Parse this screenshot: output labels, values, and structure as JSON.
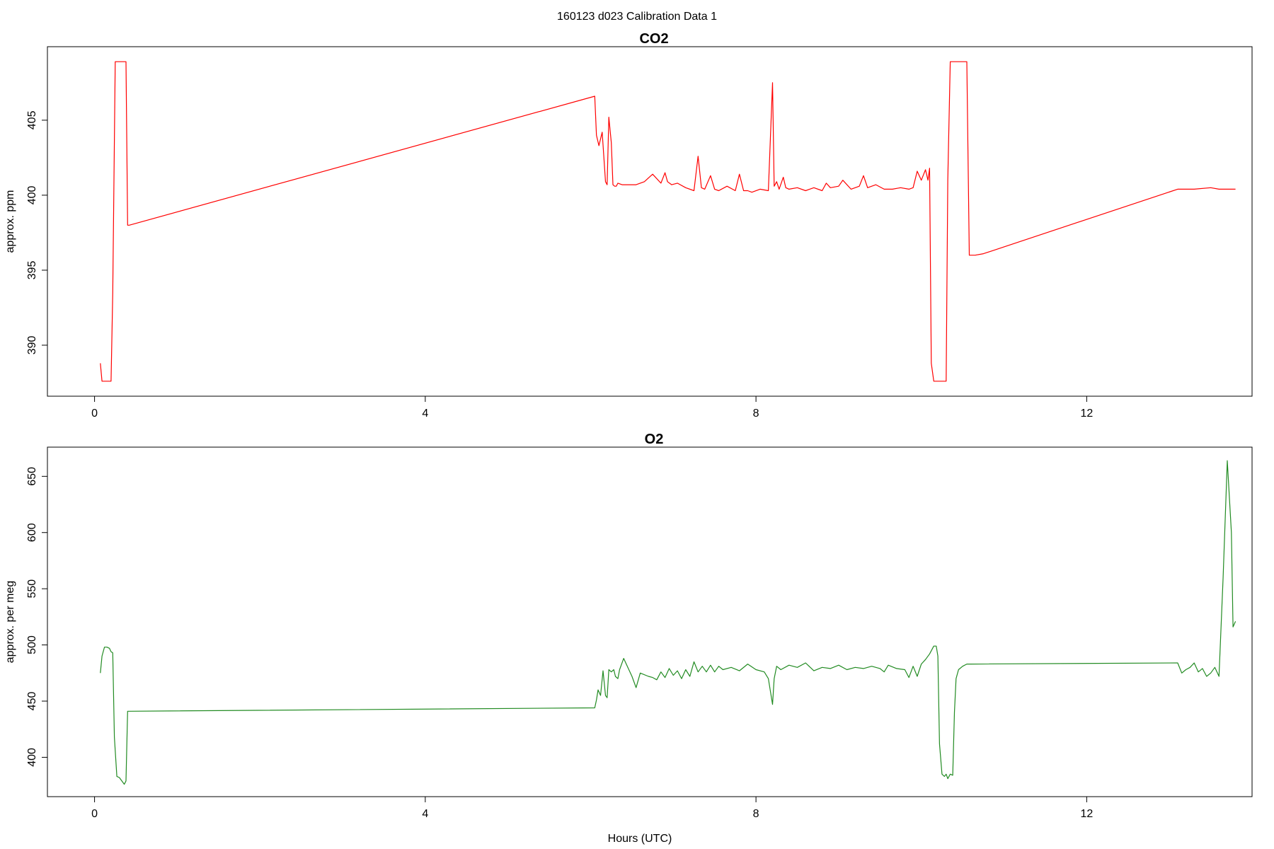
{
  "figure": {
    "title": "160123   d023   Calibration Data 1"
  },
  "chart_data": [
    {
      "type": "line",
      "title": "CO2",
      "xlabel": "",
      "ylabel": "approx. ppm",
      "xlim": [
        -0.57,
        14.0
      ],
      "ylim": [
        386.6,
        409.9
      ],
      "xticks": [
        0,
        4,
        8,
        12
      ],
      "yticks": [
        390,
        395,
        400,
        405
      ],
      "grid": false,
      "color": "#ff0000",
      "series": [
        {
          "x": [
            0.07,
            0.09,
            0.12,
            0.2,
            0.22,
            0.25,
            0.3,
            0.38,
            0.4,
            0.41,
            0.42,
            6.05,
            6.07,
            6.1,
            6.14,
            6.18,
            6.2,
            6.22,
            6.25,
            6.27,
            6.29,
            6.31,
            6.33,
            6.38,
            6.45,
            6.55,
            6.65,
            6.75,
            6.85,
            6.9,
            6.93,
            6.98,
            7.05,
            7.15,
            7.25,
            7.3,
            7.34,
            7.38,
            7.45,
            7.5,
            7.55,
            7.65,
            7.75,
            7.8,
            7.85,
            7.9,
            7.95,
            8.05,
            8.15,
            8.2,
            8.22,
            8.25,
            8.28,
            8.33,
            8.36,
            8.4,
            8.5,
            8.6,
            8.7,
            8.8,
            8.85,
            8.9,
            9.0,
            9.05,
            9.15,
            9.25,
            9.3,
            9.35,
            9.45,
            9.55,
            9.65,
            9.75,
            9.85,
            9.9,
            9.95,
            10.0,
            10.05,
            10.08,
            10.1,
            10.12,
            10.15,
            10.3,
            10.32,
            10.35,
            10.38,
            10.45,
            10.55,
            10.58,
            10.6,
            10.65,
            10.75,
            13.1,
            13.3,
            13.5,
            13.6,
            13.8
          ],
          "y": [
            388.8,
            387.6,
            387.6,
            387.6,
            393.5,
            408.9,
            408.9,
            408.9,
            398.0,
            398.0,
            398.0,
            406.6,
            404.0,
            403.3,
            404.2,
            400.9,
            400.7,
            405.2,
            403.5,
            400.7,
            400.6,
            400.6,
            400.8,
            400.7,
            400.7,
            400.7,
            400.9,
            401.4,
            400.8,
            401.5,
            400.9,
            400.7,
            400.8,
            400.5,
            400.3,
            402.6,
            400.5,
            400.4,
            401.3,
            400.4,
            400.3,
            400.6,
            400.3,
            401.4,
            400.3,
            400.3,
            400.2,
            400.4,
            400.3,
            407.5,
            400.6,
            400.9,
            400.4,
            401.2,
            400.5,
            400.4,
            400.5,
            400.3,
            400.5,
            400.3,
            400.8,
            400.5,
            400.6,
            401.0,
            400.4,
            400.6,
            401.3,
            400.5,
            400.7,
            400.4,
            400.4,
            400.5,
            400.4,
            400.5,
            401.6,
            401.0,
            401.7,
            401.0,
            401.8,
            388.8,
            387.6,
            387.6,
            401.0,
            408.9,
            408.9,
            408.9,
            408.9,
            396.0,
            396.0,
            396.0,
            396.1,
            400.4,
            400.4,
            400.5,
            400.4,
            400.4
          ]
        }
      ]
    },
    {
      "type": "line",
      "title": "O2",
      "xlabel": "Hours (UTC)",
      "ylabel": "approx. per meg",
      "xlim": [
        -0.57,
        14.0
      ],
      "ylim": [
        365,
        676
      ],
      "xticks": [
        0,
        4,
        8,
        12
      ],
      "yticks": [
        400,
        450,
        500,
        550,
        600,
        650
      ],
      "grid": false,
      "color": "#228B22",
      "series": [
        {
          "x": [
            0.07,
            0.09,
            0.12,
            0.15,
            0.18,
            0.2,
            0.22,
            0.24,
            0.27,
            0.3,
            0.34,
            0.36,
            0.38,
            0.4,
            0.42,
            6.05,
            6.07,
            6.09,
            6.12,
            6.15,
            6.18,
            6.2,
            6.22,
            6.25,
            6.28,
            6.3,
            6.33,
            6.35,
            6.4,
            6.45,
            6.5,
            6.55,
            6.6,
            6.7,
            6.75,
            6.8,
            6.85,
            6.9,
            6.95,
            7.0,
            7.05,
            7.1,
            7.15,
            7.2,
            7.25,
            7.3,
            7.35,
            7.4,
            7.45,
            7.5,
            7.55,
            7.6,
            7.7,
            7.8,
            7.9,
            8.0,
            8.1,
            8.15,
            8.2,
            8.22,
            8.25,
            8.3,
            8.4,
            8.5,
            8.6,
            8.7,
            8.8,
            8.9,
            9.0,
            9.1,
            9.2,
            9.3,
            9.4,
            9.5,
            9.55,
            9.6,
            9.7,
            9.8,
            9.85,
            9.9,
            9.95,
            10.0,
            10.05,
            10.1,
            10.15,
            10.18,
            10.2,
            10.22,
            10.25,
            10.28,
            10.3,
            10.32,
            10.35,
            10.38,
            10.4,
            10.42,
            10.45,
            10.5,
            10.55,
            10.6,
            13.1,
            13.15,
            13.2,
            13.25,
            13.3,
            13.35,
            13.4,
            13.45,
            13.5,
            13.55,
            13.6,
            13.65,
            13.7,
            13.75,
            13.77,
            13.8
          ],
          "y": [
            475,
            490,
            498,
            498,
            497,
            494,
            493,
            418,
            383,
            382,
            378,
            376,
            379,
            441,
            441,
            444,
            451,
            460,
            455,
            477,
            455,
            453,
            478,
            476,
            478,
            472,
            470,
            478,
            488,
            480,
            472,
            462,
            475,
            472,
            471,
            469,
            476,
            471,
            479,
            473,
            477,
            470,
            478,
            472,
            485,
            476,
            481,
            476,
            482,
            476,
            481,
            478,
            480,
            477,
            483,
            478,
            476,
            470,
            447,
            470,
            481,
            478,
            482,
            480,
            484,
            477,
            480,
            479,
            482,
            478,
            480,
            479,
            481,
            479,
            476,
            482,
            479,
            478,
            471,
            481,
            472,
            483,
            487,
            492,
            499,
            499,
            490,
            412,
            385,
            383,
            385,
            381,
            385,
            384,
            440,
            470,
            478,
            481,
            483,
            483,
            484,
            475,
            478,
            480,
            484,
            476,
            479,
            472,
            475,
            480,
            472,
            560,
            664,
            600,
            516,
            521
          ]
        }
      ]
    }
  ]
}
